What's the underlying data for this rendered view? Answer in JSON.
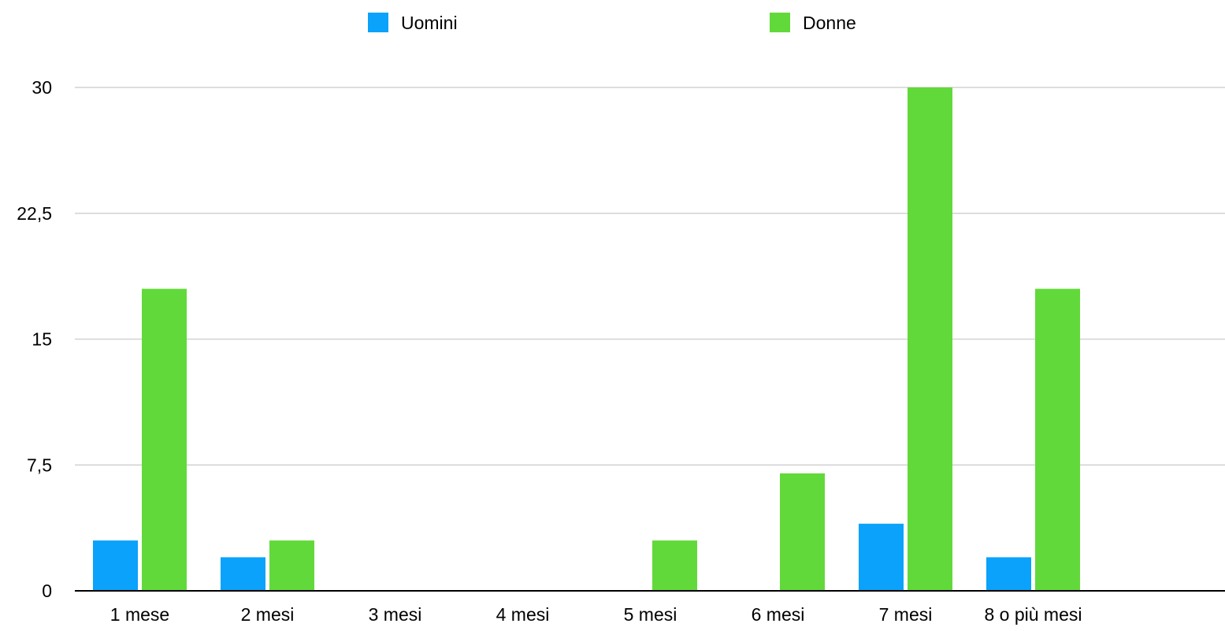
{
  "chart_data": {
    "type": "bar",
    "categories": [
      "1 mese",
      "2 mesi",
      "3 mesi",
      "4 mesi",
      "5 mesi",
      "6 mesi",
      "7 mesi",
      "8 o più mesi"
    ],
    "series": [
      {
        "name": "Uomini",
        "color": "#0aa2fa",
        "values": [
          3,
          2,
          0,
          0,
          0,
          0,
          4,
          2
        ]
      },
      {
        "name": "Donne",
        "color": "#62d93a",
        "values": [
          18,
          3,
          0,
          0,
          3,
          7,
          30,
          18
        ]
      }
    ],
    "yticks": [
      "0",
      "7,5",
      "15",
      "22,5",
      "30"
    ],
    "ylim": [
      0,
      30
    ],
    "title": "",
    "xlabel": "",
    "ylabel": "",
    "grid": true,
    "legend_position": "top"
  }
}
